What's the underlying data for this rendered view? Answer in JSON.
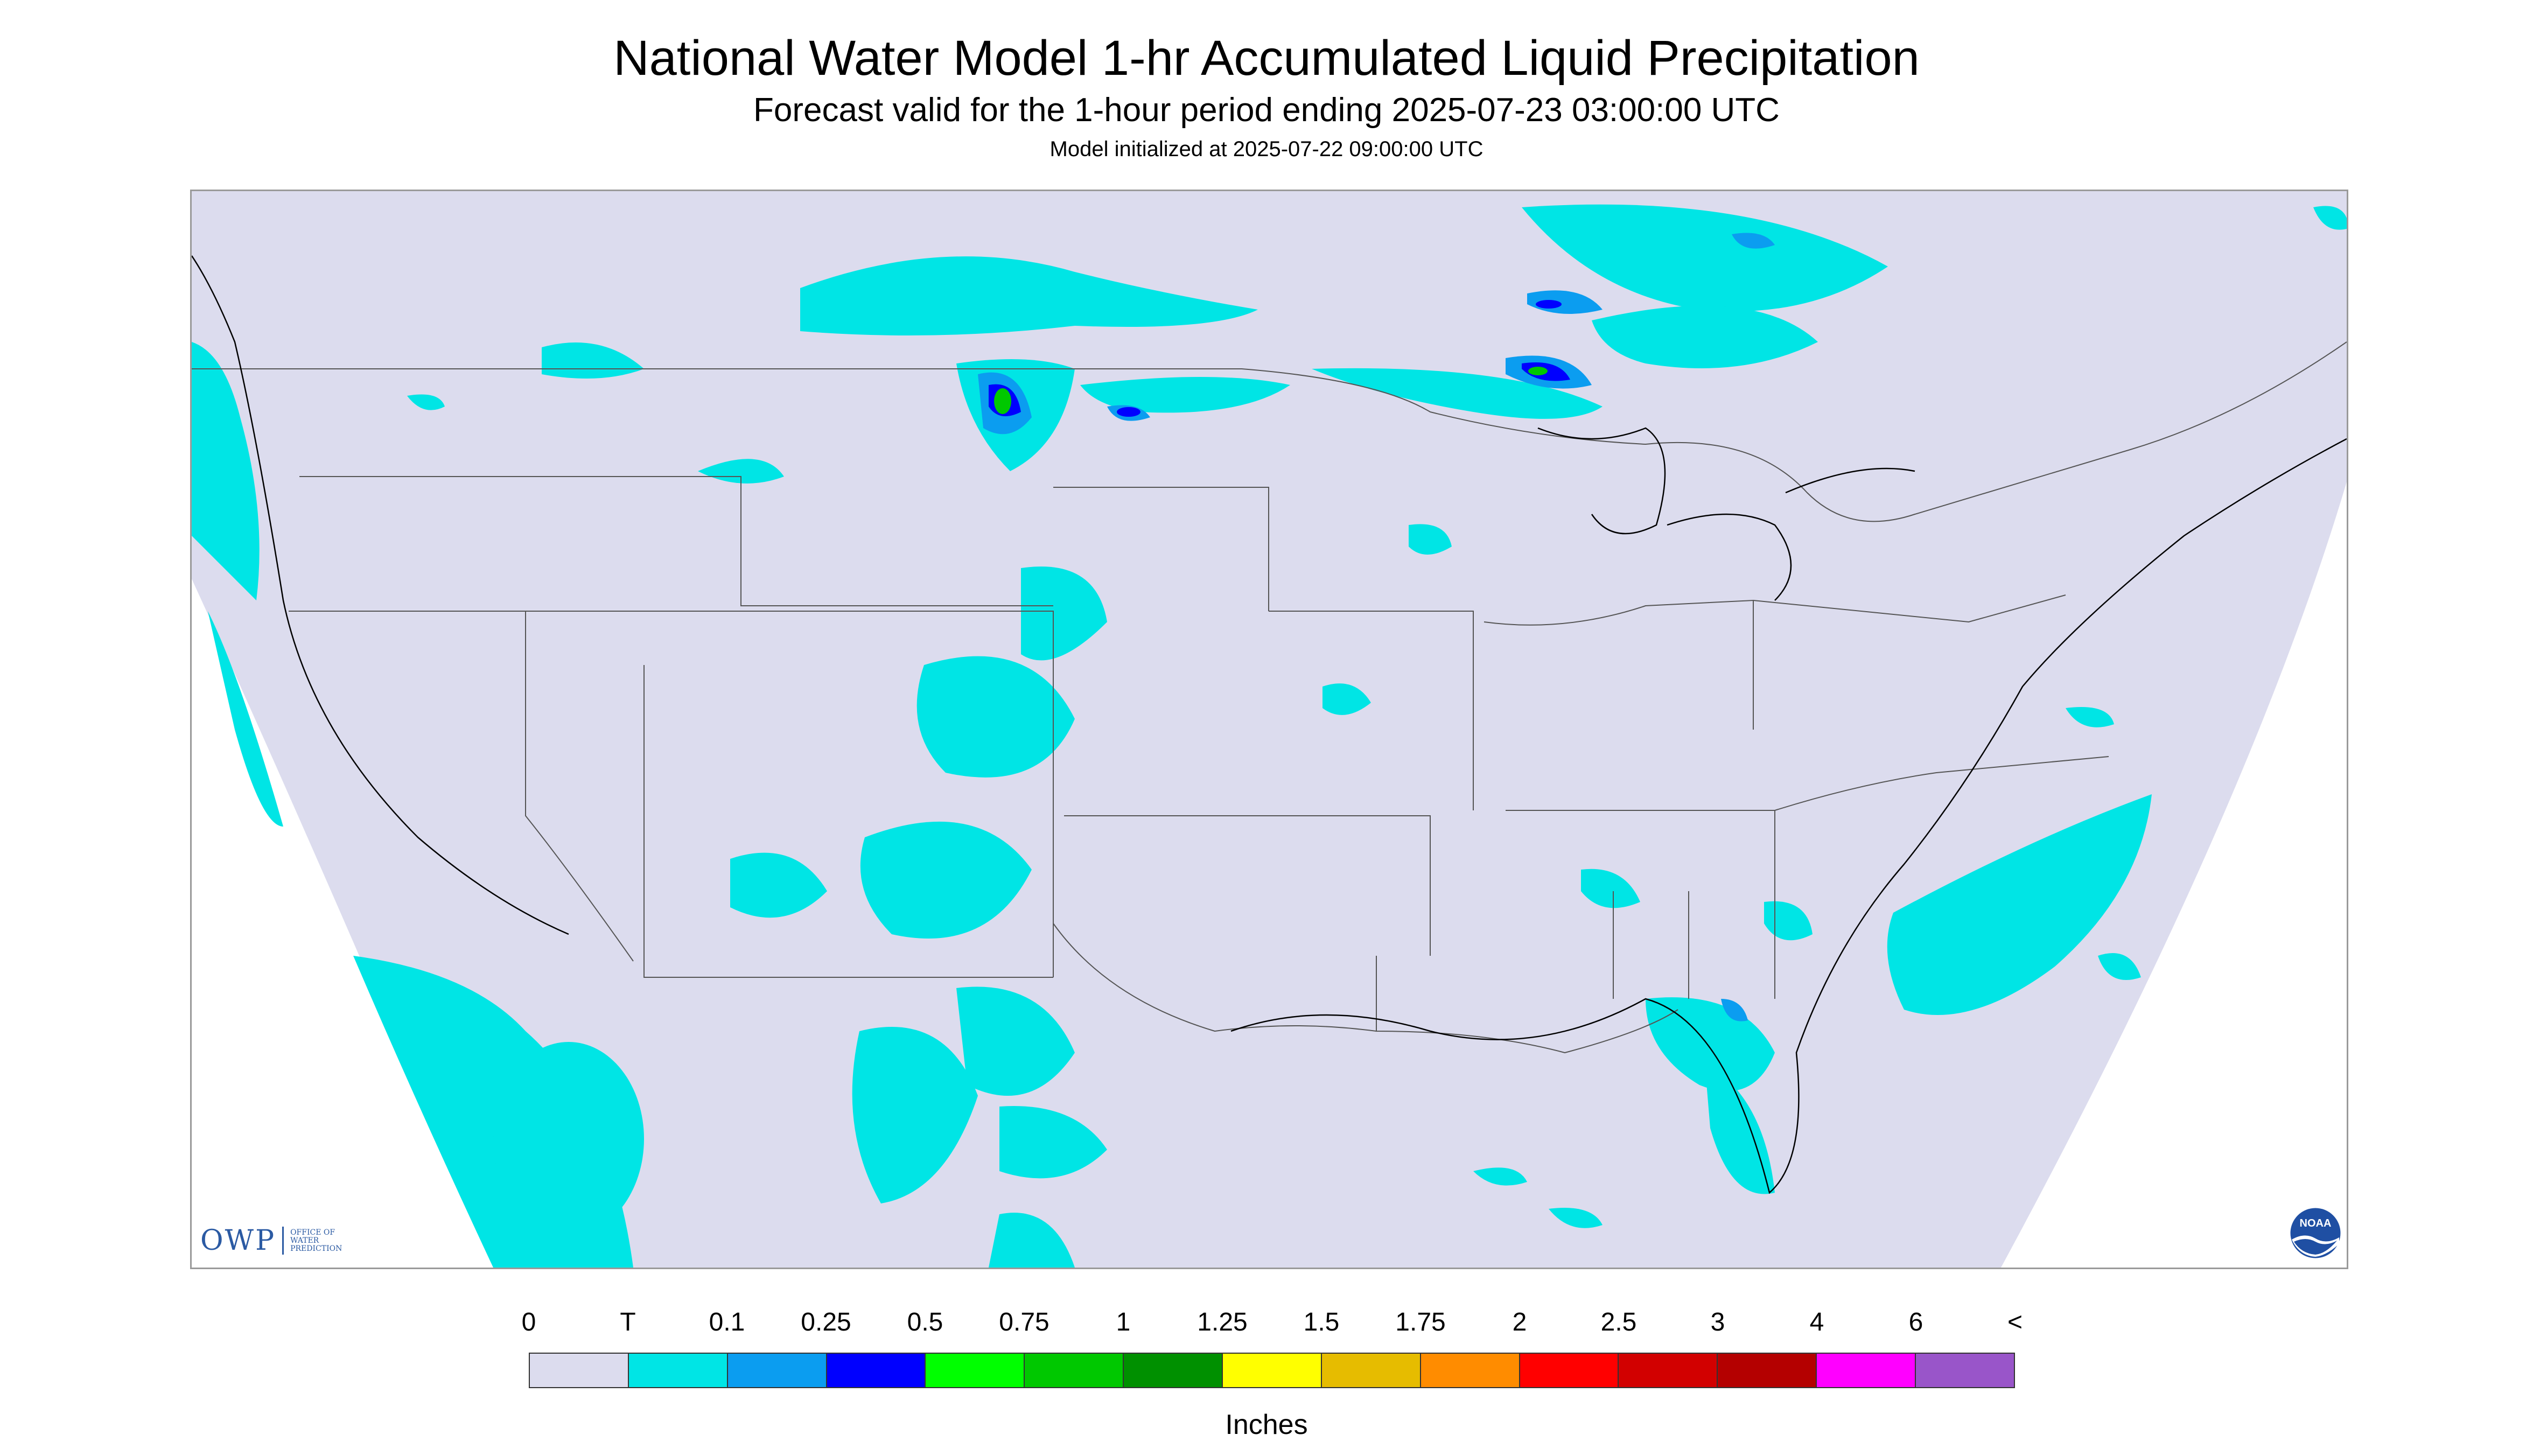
{
  "header": {
    "title": "National Water Model 1-hr Accumulated Liquid Precipitation",
    "subtitle": "Forecast valid for the 1-hour period ending 2025-07-23 03:00:00 UTC",
    "init": "Model initialized at 2025-07-22 09:00:00 UTC"
  },
  "logos": {
    "owp_word": "OWP",
    "owp_line1": "OFFICE OF",
    "owp_line2": "WATER",
    "owp_line3": "PREDICTION",
    "noaa": "NOAA"
  },
  "legend": {
    "units": "Inches",
    "ticks": [
      "0",
      "T",
      "0.1",
      "0.25",
      "0.5",
      "0.75",
      "1",
      "1.25",
      "1.5",
      "1.75",
      "2",
      "2.5",
      "3",
      "4",
      "6",
      "<"
    ],
    "colors": [
      "#dcdcee",
      "#00e5e5",
      "#0b9df0",
      "#0000ff",
      "#00ff00",
      "#00c800",
      "#009000",
      "#ffff00",
      "#e6bc00",
      "#ff8c00",
      "#ff0000",
      "#d20000",
      "#b40000",
      "#ff00ff",
      "#9955c9"
    ]
  },
  "map": {
    "domain_color": "#dcdcee",
    "trace_color": "#00e5e5",
    "light_color": "#0b9df0",
    "moderate_color": "#0000ff",
    "heavy_color": "#00ff00"
  }
}
